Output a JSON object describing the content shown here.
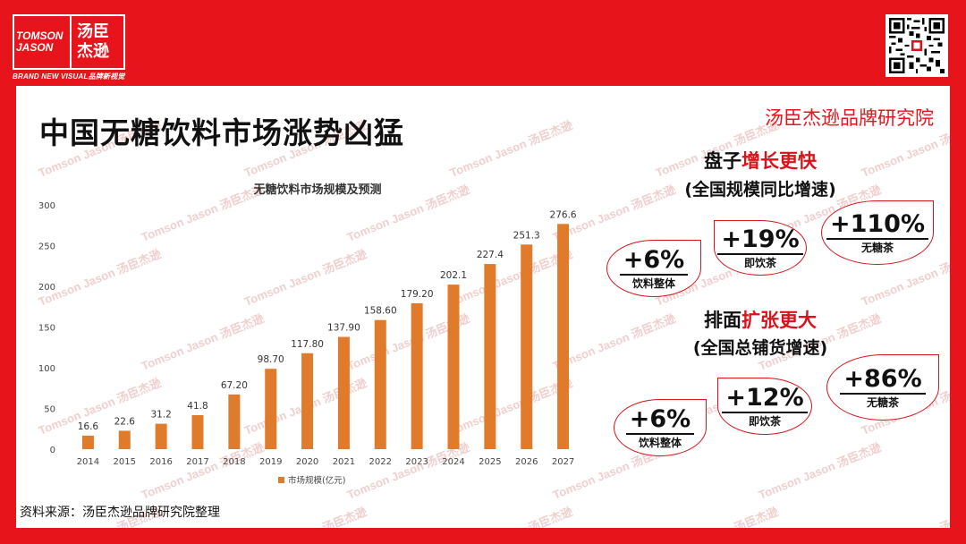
{
  "brand": {
    "logo_en_line1": "TOMSON",
    "logo_en_line2": "JASON",
    "logo_cn_line1": "汤臣",
    "logo_cn_line2": "杰逊",
    "tagline": "BRAND NEW VISUAL品牌新视觉",
    "watermark_text": "Tomson Jason 汤臣杰逊"
  },
  "page": {
    "title": "中国无糖饮料市场涨势凶猛",
    "institute": "汤臣杰逊品牌研究院",
    "source": "资料来源：汤臣杰逊品牌研究院整理"
  },
  "chart_data": {
    "type": "bar",
    "title": "无糖饮料市场规模及预测",
    "categories": [
      "2014",
      "2015",
      "2016",
      "2017",
      "2018",
      "2019",
      "2020",
      "2021",
      "2022",
      "2023",
      "2024",
      "2025",
      "2026",
      "2027"
    ],
    "series": [
      {
        "name": "市场规模(亿元)",
        "values": [
          16.6,
          22.6,
          31.2,
          41.8,
          67.2,
          98.7,
          117.8,
          137.9,
          158.6,
          179.2,
          202.1,
          227.4,
          251.3,
          276.6
        ]
      }
    ],
    "value_labels": [
      "16.6",
      "22.6",
      "31.2",
      "41.8",
      "67.20",
      "98.70",
      "117.80",
      "137.90",
      "158.60",
      "179.20",
      "202.1",
      "227.4",
      "251.3",
      "276.6"
    ],
    "ylim": [
      0,
      300
    ],
    "yticks": [
      0,
      50,
      100,
      150,
      200,
      250,
      300
    ],
    "xlabel": "",
    "ylabel": "",
    "grid": false,
    "legend_position": "bottom",
    "bar_color": "#e07b2c"
  },
  "shelf_growth": {
    "title_prefix": "盘子",
    "title_highlight": "增长更快",
    "subtitle": "(全国规模同比增速)",
    "items": [
      {
        "value": "+6%",
        "label": "饮料整体"
      },
      {
        "value": "+19%",
        "label": "即饮茶"
      },
      {
        "value": "+110%",
        "label": "无糖茶"
      }
    ]
  },
  "distribution_growth": {
    "title_prefix": "排面",
    "title_highlight": "扩张更大",
    "subtitle": "(全国总铺货增速)",
    "items": [
      {
        "value": "+6%",
        "label": "饮料整体"
      },
      {
        "value": "+12%",
        "label": "即饮茶"
      },
      {
        "value": "+86%",
        "label": "无糖茶"
      }
    ]
  },
  "colors": {
    "brand_red": "#e8141b",
    "highlight_red": "#d9121b",
    "bar": "#e07b2c"
  }
}
